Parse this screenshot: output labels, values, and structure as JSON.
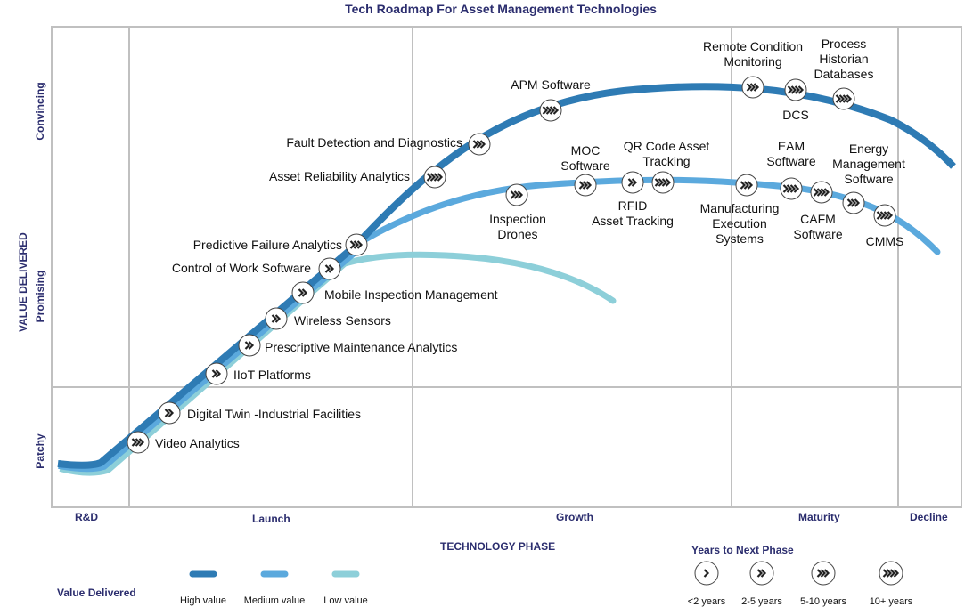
{
  "title": "Tech Roadmap For Asset Management Technologies",
  "y_axis": {
    "title": "VALUE DELIVERED",
    "levels": [
      "Patchy",
      "Promising",
      "Convincing"
    ]
  },
  "x_axis": {
    "title": "TECHNOLOGY PHASE",
    "phases": [
      "R&D",
      "Launch",
      "Growth",
      "Maturity",
      "Decline"
    ]
  },
  "colors": {
    "high": "#2e7bb4",
    "medium": "#5ba9dd",
    "low": "#8dcfd9",
    "text_accent": "#2b2d6e",
    "grid": "#c0c0c0"
  },
  "technologies": [
    {
      "name": "Video Analytics",
      "value": "High value",
      "chevrons": 3
    },
    {
      "name": "Digital Twin -Industrial Facilities",
      "value": "High value",
      "chevrons": 2
    },
    {
      "name": "IIoT Platforms",
      "value": "High value",
      "chevrons": 2
    },
    {
      "name": "Prescriptive Maintenance Analytics",
      "value": "High value",
      "chevrons": 2
    },
    {
      "name": "Wireless Sensors",
      "value": "High value",
      "chevrons": 2
    },
    {
      "name": "Mobile Inspection Management",
      "value": "High value",
      "chevrons": 2
    },
    {
      "name": "Control of Work Software",
      "value": "High value",
      "chevrons": 2
    },
    {
      "name": "Predictive Failure Analytics",
      "value": "High value",
      "chevrons": 3
    },
    {
      "name": "Asset Reliability Analytics",
      "value": "High value",
      "chevrons": 4
    },
    {
      "name": "Fault Detection and Diagnostics",
      "value": "High value",
      "chevrons": 3
    },
    {
      "name": "APM Software",
      "value": "High value",
      "chevrons": 4
    },
    {
      "name": "Remote Condition\nMonitoring",
      "value": "High value",
      "chevrons": 3
    },
    {
      "name": "DCS",
      "value": "High value",
      "chevrons": 4
    },
    {
      "name": "Process\nHistorian\nDatabases",
      "value": "High value",
      "chevrons": 4
    },
    {
      "name": "Inspection\nDrones",
      "value": "Medium value",
      "chevrons": 3
    },
    {
      "name": "MOC\nSoftware",
      "value": "Medium value",
      "chevrons": 3
    },
    {
      "name": "RFID\nAsset Tracking",
      "value": "Medium value",
      "chevrons": 2
    },
    {
      "name": "QR Code Asset\nTracking",
      "value": "Medium value",
      "chevrons": 4
    },
    {
      "name": "Manufacturing\nExecution\nSystems",
      "value": "Medium value",
      "chevrons": 3
    },
    {
      "name": "EAM\nSoftware",
      "value": "Medium value",
      "chevrons": 4
    },
    {
      "name": "CAFM\nSoftware",
      "value": "Medium value",
      "chevrons": 4
    },
    {
      "name": "Energy\nManagement\nSoftware",
      "value": "Medium value",
      "chevrons": 3
    },
    {
      "name": "CMMS",
      "value": "Medium value",
      "chevrons": 4
    }
  ],
  "legend": {
    "value_title": "Value Delivered",
    "values": [
      "High value",
      "Medium value",
      "Low value"
    ],
    "years_title": "Years to Next Phase",
    "years": [
      {
        "label": "<2 years",
        "chevrons": 1
      },
      {
        "label": "2-5 years",
        "chevrons": 2
      },
      {
        "label": "5-10 years",
        "chevrons": 3
      },
      {
        "label": "10+ years",
        "chevrons": 4
      }
    ]
  }
}
